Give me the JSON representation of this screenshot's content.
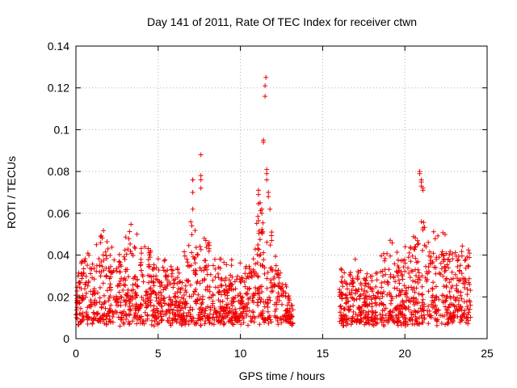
{
  "chart_data": {
    "type": "scatter",
    "title": "Day 141 of 2011, Rate Of TEC Index for receiver ctwn",
    "xlabel": "GPS time / hours",
    "ylabel": "ROTI / TECUs",
    "xlim": [
      0,
      25
    ],
    "ylim": [
      0,
      0.14
    ],
    "xticks": [
      0,
      5,
      10,
      15,
      20,
      25
    ],
    "yticks": [
      0,
      0.02,
      0.04,
      0.06,
      0.08,
      0.1,
      0.12,
      0.14
    ],
    "ytick_labels": [
      "0",
      "0.02",
      "0.04",
      "0.06",
      "0.08",
      "0.1",
      "0.12",
      "0.14"
    ],
    "grid": true,
    "marker": "plus",
    "color": "#ee0000",
    "envelope": [
      [
        0.0,
        0.028
      ],
      [
        0.5,
        0.043
      ],
      [
        1.0,
        0.04
      ],
      [
        1.5,
        0.053
      ],
      [
        2.0,
        0.046
      ],
      [
        2.5,
        0.04
      ],
      [
        3.0,
        0.048
      ],
      [
        3.5,
        0.057
      ],
      [
        4.0,
        0.05
      ],
      [
        4.5,
        0.047
      ],
      [
        5.0,
        0.036
      ],
      [
        5.5,
        0.042
      ],
      [
        6.0,
        0.033
      ],
      [
        6.5,
        0.036
      ],
      [
        7.0,
        0.056
      ],
      [
        7.5,
        0.05
      ],
      [
        8.0,
        0.048
      ],
      [
        8.5,
        0.036
      ],
      [
        9.0,
        0.034
      ],
      [
        9.5,
        0.036
      ],
      [
        10.0,
        0.033
      ],
      [
        10.5,
        0.04
      ],
      [
        11.0,
        0.07
      ],
      [
        11.5,
        0.06
      ],
      [
        12.0,
        0.052
      ],
      [
        12.5,
        0.028
      ],
      [
        13.2,
        0.016
      ],
      [
        16.0,
        0.033
      ],
      [
        16.5,
        0.03
      ],
      [
        17.0,
        0.036
      ],
      [
        17.5,
        0.033
      ],
      [
        18.0,
        0.03
      ],
      [
        18.5,
        0.036
      ],
      [
        19.0,
        0.047
      ],
      [
        19.5,
        0.044
      ],
      [
        20.0,
        0.044
      ],
      [
        20.5,
        0.049
      ],
      [
        21.0,
        0.056
      ],
      [
        21.5,
        0.046
      ],
      [
        22.0,
        0.052
      ],
      [
        22.5,
        0.048
      ],
      [
        23.0,
        0.043
      ],
      [
        23.5,
        0.047
      ],
      [
        24.0,
        0.04
      ]
    ],
    "baseline": 0.006,
    "segments": [
      [
        0.0,
        13.2
      ],
      [
        16.0,
        24.0
      ]
    ],
    "spikes": [
      [
        7.1,
        0.07
      ],
      [
        7.1,
        0.076
      ],
      [
        7.1,
        0.076
      ],
      [
        7.1,
        0.062
      ],
      [
        7.6,
        0.088
      ],
      [
        7.6,
        0.078
      ],
      [
        7.6,
        0.076
      ],
      [
        7.6,
        0.072
      ],
      [
        7.8,
        0.048
      ],
      [
        7.9,
        0.047
      ],
      [
        8.1,
        0.046
      ],
      [
        8.1,
        0.043
      ],
      [
        11.1,
        0.071
      ],
      [
        11.1,
        0.069
      ],
      [
        11.2,
        0.065
      ],
      [
        11.3,
        0.062
      ],
      [
        11.3,
        0.06
      ],
      [
        11.4,
        0.095
      ],
      [
        11.4,
        0.094
      ],
      [
        11.5,
        0.116
      ],
      [
        11.5,
        0.121
      ],
      [
        11.55,
        0.125
      ],
      [
        11.6,
        0.081
      ],
      [
        11.6,
        0.079
      ],
      [
        11.6,
        0.076
      ],
      [
        11.7,
        0.07
      ],
      [
        11.7,
        0.068
      ],
      [
        11.8,
        0.062
      ],
      [
        11.9,
        0.051
      ],
      [
        11.9,
        0.047
      ],
      [
        20.9,
        0.08
      ],
      [
        20.9,
        0.079
      ],
      [
        21.0,
        0.076
      ],
      [
        21.0,
        0.075
      ],
      [
        21.0,
        0.073
      ],
      [
        21.1,
        0.072
      ],
      [
        21.1,
        0.071
      ],
      [
        21.0,
        0.056
      ],
      [
        21.1,
        0.053
      ],
      [
        21.1,
        0.052
      ]
    ]
  }
}
